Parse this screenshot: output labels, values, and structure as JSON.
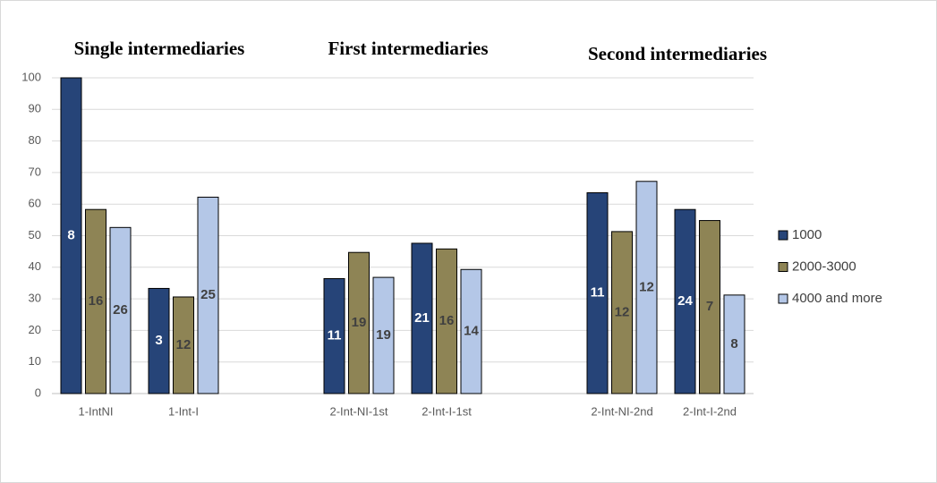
{
  "chart_data": {
    "type": "bar",
    "titles": [
      "Single intermediaries",
      "First intermediaries",
      "Second intermediaries"
    ],
    "categories": [
      "1-IntNI",
      "1-Int-I",
      null,
      "2-Int-NI-1st",
      "2-Int-I-1st",
      null,
      "2-Int-NI-2nd",
      "2-Int-I-2nd"
    ],
    "series": [
      {
        "name": "1000",
        "color": "#264478",
        "label_color": "#ffffff",
        "values": [
          100,
          33.3,
          null,
          36.4,
          47.6,
          null,
          63.6,
          58.3
        ],
        "counts": [
          8,
          3,
          null,
          11,
          21,
          null,
          11,
          24
        ]
      },
      {
        "name": "2000-3000",
        "color": "#8e8455",
        "label_color": "#404040",
        "values": [
          58.3,
          30.6,
          null,
          44.7,
          45.8,
          null,
          51.3,
          54.8
        ],
        "counts": [
          16,
          12,
          null,
          19,
          16,
          null,
          12,
          7
        ]
      },
      {
        "name": "4000 and more",
        "color": "#b4c7e7",
        "label_color": "#404040",
        "values": [
          52.6,
          62.2,
          null,
          36.8,
          39.3,
          null,
          67.2,
          31.2
        ],
        "counts": [
          26,
          25,
          null,
          19,
          14,
          null,
          12,
          8
        ]
      }
    ],
    "ylim": [
      0,
      100
    ],
    "yticks": [
      0,
      10,
      20,
      30,
      40,
      50,
      60,
      70,
      80,
      90,
      100
    ],
    "grid": true,
    "legend": "right"
  }
}
